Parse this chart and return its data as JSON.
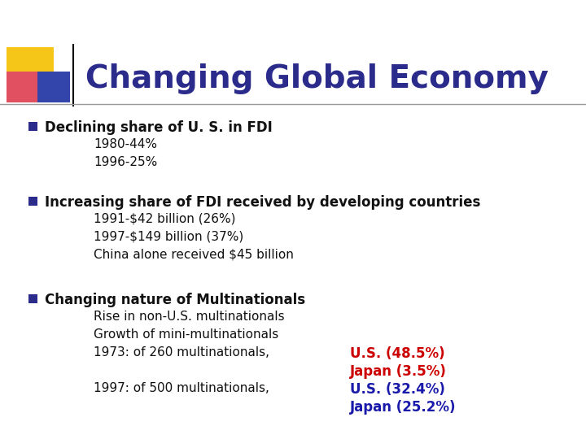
{
  "title": "Changing Global Economy",
  "title_color": "#2B2B8C",
  "title_fontsize": 28,
  "bg_color": "#FFFFFF",
  "bullet_color": "#2B2B8C",
  "bullet1_header": "Declining share of U. S. in FDI",
  "bullet1_lines": [
    "1980-44%",
    "1996-25%"
  ],
  "bullet2_header": "Increasing share of FDI received by developing countries",
  "bullet2_lines": [
    "1991-$42 billion (26%)",
    "1997-$149 billion (37%)",
    "China alone received $45 billion"
  ],
  "bullet3_header": "Changing nature of Multinationals",
  "bullet3_lines": [
    "Rise in non-U.S. multinationals",
    "Growth of mini-multinationals",
    "1973: of 260 multinationals,",
    "",
    "1997: of 500 multinationals,"
  ],
  "red_text_1": "U.S. (48.5%)",
  "red_text_2": "Japan (3.5%)",
  "blue_text_1": "U.S. (32.4%)",
  "blue_text_2": "Japan (25.2%)",
  "red_color": "#CC0000",
  "blue_ann_color": "#1a1aaa",
  "main_text_color": "#111111",
  "yellow_color": "#F5C518",
  "red_sq_color": "#E05060",
  "blue_sq_color": "#3344AA"
}
